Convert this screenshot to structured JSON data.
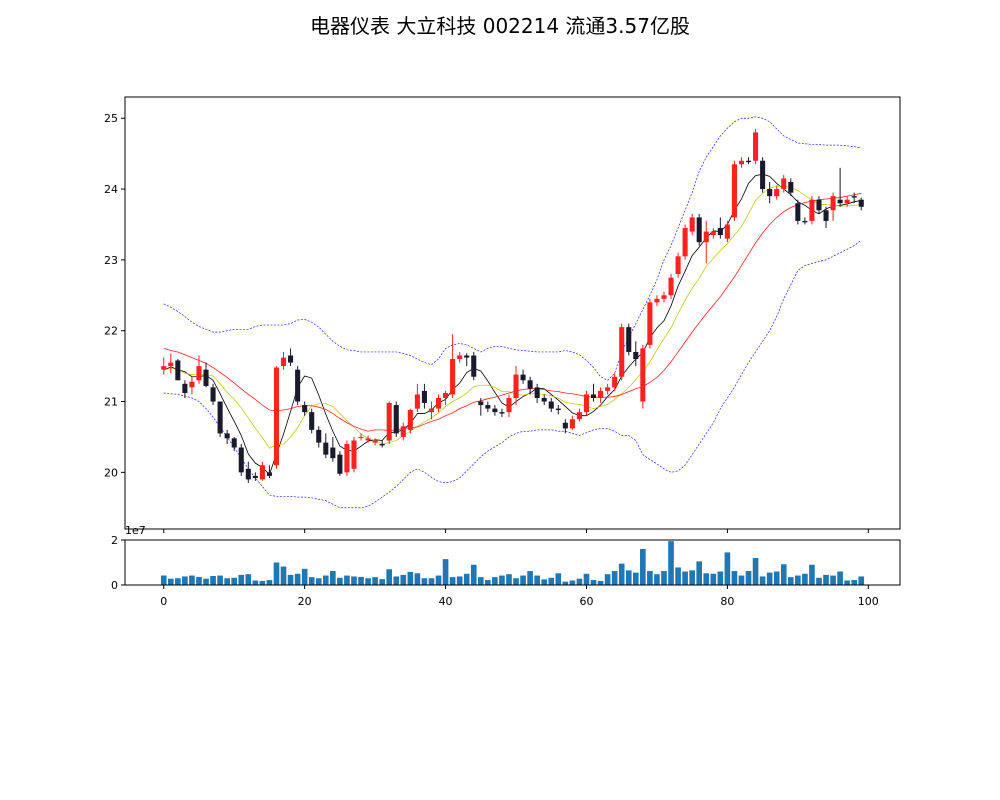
{
  "title": "电器仪表 大立科技 002214 流通3.57亿股",
  "chart_data": {
    "type": "candlestick",
    "price_panel": {
      "ylim": [
        19.2,
        25.3
      ],
      "yticks": [
        20,
        21,
        22,
        23,
        24,
        25
      ],
      "grid": false,
      "up_color": "#ff2020",
      "down_color": "#1a1a2e"
    },
    "volume_panel": {
      "ylim": [
        0,
        2.0
      ],
      "yticks": [
        0,
        2
      ],
      "scale_label": "1e7",
      "bar_color": "#1f77b4"
    },
    "x": {
      "xlim": [
        -5.5,
        104.5
      ],
      "xticks": [
        0,
        20,
        40,
        60,
        80,
        100
      ]
    },
    "ohlc": [
      [
        21.45,
        21.62,
        21.38,
        21.5
      ],
      [
        21.5,
        21.68,
        21.4,
        21.55
      ],
      [
        21.58,
        21.6,
        21.3,
        21.3
      ],
      [
        21.25,
        21.3,
        21.05,
        21.12
      ],
      [
        21.2,
        21.35,
        21.1,
        21.28
      ],
      [
        21.3,
        21.65,
        21.25,
        21.5
      ],
      [
        21.45,
        21.55,
        21.2,
        21.22
      ],
      [
        21.2,
        21.25,
        20.95,
        21.0
      ],
      [
        21.0,
        21.0,
        20.5,
        20.55
      ],
      [
        20.55,
        20.6,
        20.4,
        20.48
      ],
      [
        20.48,
        20.5,
        20.3,
        20.35
      ],
      [
        20.35,
        20.4,
        19.95,
        20.0
      ],
      [
        20.05,
        20.15,
        19.85,
        19.9
      ],
      [
        19.95,
        20.0,
        19.88,
        19.92
      ],
      [
        19.9,
        20.15,
        19.88,
        20.1
      ],
      [
        20.0,
        20.1,
        19.92,
        19.95
      ],
      [
        20.1,
        21.5,
        20.05,
        21.48
      ],
      [
        21.5,
        21.7,
        21.45,
        21.62
      ],
      [
        21.65,
        21.75,
        21.5,
        21.55
      ],
      [
        21.45,
        21.5,
        20.95,
        21.0
      ],
      [
        20.95,
        21.0,
        20.8,
        20.85
      ],
      [
        20.85,
        20.9,
        20.55,
        20.6
      ],
      [
        20.6,
        20.65,
        20.35,
        20.42
      ],
      [
        20.42,
        20.55,
        20.2,
        20.25
      ],
      [
        20.35,
        20.5,
        20.15,
        20.2
      ],
      [
        20.25,
        20.3,
        19.95,
        19.98
      ],
      [
        20.0,
        20.45,
        19.95,
        20.4
      ],
      [
        20.05,
        20.5,
        20.0,
        20.45
      ],
      [
        20.5,
        20.55,
        20.45,
        20.5
      ],
      [
        20.45,
        20.52,
        20.42,
        20.48
      ],
      [
        20.42,
        20.48,
        20.38,
        20.45
      ],
      [
        20.4,
        20.45,
        20.35,
        20.38
      ],
      [
        20.45,
        21.0,
        20.4,
        20.98
      ],
      [
        20.95,
        21.0,
        20.5,
        20.55
      ],
      [
        20.5,
        20.7,
        20.45,
        20.65
      ],
      [
        20.6,
        20.9,
        20.55,
        20.88
      ],
      [
        20.9,
        21.25,
        20.85,
        21.1
      ],
      [
        21.15,
        21.25,
        20.9,
        20.98
      ],
      [
        20.85,
        21.0,
        20.75,
        20.9
      ],
      [
        20.9,
        21.1,
        20.85,
        21.05
      ],
      [
        21.05,
        21.15,
        20.95,
        21.12
      ],
      [
        21.1,
        21.95,
        21.05,
        21.6
      ],
      [
        21.6,
        21.7,
        21.55,
        21.65
      ],
      [
        21.65,
        21.68,
        21.5,
        21.62
      ],
      [
        21.65,
        21.7,
        21.3,
        21.35
      ],
      [
        21.0,
        21.05,
        20.8,
        20.95
      ],
      [
        20.95,
        21.0,
        20.85,
        20.9
      ],
      [
        20.9,
        20.95,
        20.8,
        20.85
      ],
      [
        20.85,
        20.9,
        20.78,
        20.83
      ],
      [
        20.85,
        21.1,
        20.78,
        21.05
      ],
      [
        21.05,
        21.5,
        20.95,
        21.38
      ],
      [
        21.38,
        21.45,
        21.25,
        21.3
      ],
      [
        21.3,
        21.35,
        21.1,
        21.18
      ],
      [
        21.2,
        21.25,
        20.98,
        21.05
      ],
      [
        21.05,
        21.1,
        20.95,
        21.0
      ],
      [
        21.0,
        21.05,
        20.85,
        20.9
      ],
      [
        20.9,
        20.95,
        20.82,
        20.88
      ],
      [
        20.7,
        20.75,
        20.55,
        20.62
      ],
      [
        20.62,
        20.8,
        20.6,
        20.75
      ],
      [
        20.75,
        20.9,
        20.72,
        20.85
      ],
      [
        20.85,
        21.15,
        20.8,
        21.1
      ],
      [
        21.1,
        21.25,
        21.0,
        21.05
      ],
      [
        21.05,
        21.2,
        20.98,
        21.15
      ],
      [
        21.15,
        21.25,
        21.1,
        21.2
      ],
      [
        21.2,
        21.4,
        21.15,
        21.35
      ],
      [
        21.35,
        22.1,
        21.3,
        22.05
      ],
      [
        22.05,
        22.1,
        21.65,
        21.7
      ],
      [
        21.7,
        21.85,
        21.5,
        21.6
      ],
      [
        21.0,
        21.8,
        20.9,
        21.75
      ],
      [
        21.8,
        22.45,
        21.75,
        22.4
      ],
      [
        22.4,
        22.5,
        22.35,
        22.45
      ],
      [
        22.45,
        22.55,
        22.4,
        22.5
      ],
      [
        22.5,
        22.8,
        22.45,
        22.75
      ],
      [
        22.8,
        23.1,
        22.75,
        23.05
      ],
      [
        23.05,
        23.5,
        23.0,
        23.45
      ],
      [
        23.4,
        23.65,
        23.35,
        23.6
      ],
      [
        23.6,
        23.65,
        23.2,
        23.25
      ],
      [
        23.25,
        23.55,
        22.95,
        23.4
      ],
      [
        23.35,
        23.45,
        23.3,
        23.4
      ],
      [
        23.45,
        23.6,
        23.3,
        23.35
      ],
      [
        23.3,
        23.55,
        23.25,
        23.5
      ],
      [
        23.6,
        24.4,
        23.55,
        24.35
      ],
      [
        24.35,
        24.45,
        24.3,
        24.4
      ],
      [
        24.4,
        24.45,
        24.35,
        24.38
      ],
      [
        24.4,
        24.85,
        24.35,
        24.8
      ],
      [
        24.4,
        24.45,
        23.95,
        24.0
      ],
      [
        24.0,
        24.1,
        23.8,
        23.9
      ],
      [
        23.9,
        24.05,
        23.85,
        24.0
      ],
      [
        24.0,
        24.2,
        23.95,
        24.15
      ],
      [
        24.1,
        24.15,
        23.9,
        23.95
      ],
      [
        23.8,
        23.85,
        23.5,
        23.55
      ],
      [
        23.55,
        23.6,
        23.5,
        23.53
      ],
      [
        23.55,
        23.9,
        23.5,
        23.85
      ],
      [
        23.85,
        23.9,
        23.65,
        23.7
      ],
      [
        23.7,
        23.75,
        23.45,
        23.55
      ],
      [
        23.7,
        23.95,
        23.55,
        23.9
      ],
      [
        23.85,
        24.3,
        23.75,
        23.8
      ],
      [
        23.8,
        23.9,
        23.75,
        23.85
      ],
      [
        23.9,
        23.95,
        23.8,
        23.88
      ],
      [
        23.85,
        23.88,
        23.7,
        23.75
      ]
    ],
    "volume": [
      0.42,
      0.28,
      0.3,
      0.38,
      0.42,
      0.36,
      0.28,
      0.4,
      0.42,
      0.3,
      0.32,
      0.45,
      0.48,
      0.2,
      0.18,
      0.22,
      1.0,
      0.82,
      0.45,
      0.5,
      0.72,
      0.35,
      0.3,
      0.42,
      0.62,
      0.32,
      0.42,
      0.38,
      0.36,
      0.3,
      0.35,
      0.26,
      0.7,
      0.38,
      0.45,
      0.58,
      0.52,
      0.3,
      0.3,
      0.42,
      1.15,
      0.35,
      0.38,
      0.5,
      0.9,
      0.35,
      0.22,
      0.35,
      0.42,
      0.48,
      0.3,
      0.42,
      0.62,
      0.42,
      0.25,
      0.32,
      0.52,
      0.15,
      0.2,
      0.28,
      0.5,
      0.22,
      0.18,
      0.48,
      0.62,
      0.95,
      0.65,
      0.55,
      1.6,
      0.62,
      0.48,
      0.62,
      1.95,
      0.78,
      0.6,
      0.65,
      1.05,
      0.52,
      0.5,
      0.6,
      1.45,
      0.62,
      0.42,
      0.62,
      1.2,
      0.38,
      0.55,
      0.6,
      0.92,
      0.35,
      0.42,
      0.5,
      0.9,
      0.32,
      0.45,
      0.42,
      0.6,
      0.2,
      0.22,
      0.38
    ],
    "overlays": [
      {
        "name": "",
        "color": "#000000",
        "values": [
          21.44,
          21.49,
          21.45,
          21.42,
          21.35,
          21.35,
          21.37,
          21.3,
          21.11,
          20.91,
          20.72,
          20.52,
          20.26,
          20.13,
          20.07,
          19.97,
          20.26,
          20.54,
          20.86,
          21.2,
          21.36,
          21.33,
          21.09,
          20.82,
          20.58,
          20.37,
          20.31,
          20.3,
          20.37,
          20.44,
          20.46,
          20.45,
          20.56,
          20.57,
          20.6,
          20.69,
          20.83,
          20.83,
          20.88,
          20.98,
          21.03,
          21.17,
          21.26,
          21.41,
          21.47,
          21.43,
          21.29,
          21.13,
          20.98,
          20.92,
          21.0,
          21.07,
          21.12,
          21.19,
          21.18,
          21.1,
          21.02,
          20.93,
          20.84,
          20.8,
          20.8,
          20.86,
          20.95,
          21.07,
          21.17,
          21.36,
          21.49,
          21.6,
          21.69,
          21.9,
          22.04,
          22.14,
          22.35,
          22.63,
          22.84,
          23.06,
          23.18,
          23.31,
          23.41,
          23.4,
          23.5,
          23.7,
          23.86,
          24.08,
          24.19,
          24.21,
          24.18,
          24.08,
          24.0,
          23.92,
          23.82,
          23.77,
          23.7,
          23.65,
          23.72,
          23.76,
          23.77,
          23.79,
          23.82,
          23.84
        ]
      },
      {
        "name": "",
        "color": "#c8c820",
        "values": [
          21.44,
          21.47,
          21.45,
          21.4,
          21.38,
          21.38,
          21.38,
          21.36,
          21.25,
          21.13,
          21.03,
          20.91,
          20.77,
          20.62,
          20.49,
          20.34,
          20.39,
          20.4,
          20.5,
          20.63,
          20.8,
          20.94,
          20.97,
          20.97,
          20.93,
          20.83,
          20.73,
          20.64,
          20.54,
          20.48,
          20.45,
          20.4,
          20.42,
          20.45,
          20.52,
          20.58,
          20.65,
          20.71,
          20.77,
          20.84,
          20.93,
          21.0,
          21.05,
          21.12,
          21.21,
          21.23,
          21.23,
          21.2,
          21.14,
          21.14,
          21.1,
          21.09,
          21.11,
          21.11,
          21.1,
          21.08,
          21.05,
          20.99,
          20.97,
          20.96,
          20.93,
          20.9,
          20.93,
          20.96,
          21.03,
          21.11,
          21.2,
          21.31,
          21.43,
          21.56,
          21.73,
          21.89,
          22.04,
          22.24,
          22.43,
          22.6,
          22.74,
          22.91,
          23.02,
          23.13,
          23.23,
          23.35,
          23.47,
          23.65,
          23.84,
          23.94,
          24.01,
          24.04,
          24.04,
          24.02,
          23.98,
          23.91,
          23.85,
          23.79,
          23.78,
          23.77,
          23.76,
          23.76,
          23.77,
          23.78
        ]
      },
      {
        "name": "",
        "color": "#ff2020",
        "values": [
          21.75,
          21.72,
          21.7,
          21.66,
          21.62,
          21.58,
          21.54,
          21.48,
          21.41,
          21.34,
          21.26,
          21.18,
          21.1,
          21.03,
          20.95,
          20.88,
          20.87,
          20.88,
          20.9,
          20.93,
          20.94,
          20.94,
          20.92,
          20.89,
          20.83,
          20.76,
          20.7,
          20.65,
          20.61,
          20.58,
          20.6,
          20.6,
          20.59,
          20.6,
          20.62,
          20.63,
          20.64,
          20.68,
          20.72,
          20.75,
          20.8,
          20.84,
          20.9,
          20.94,
          20.99,
          21.01,
          21.04,
          21.06,
          21.09,
          21.12,
          21.15,
          21.17,
          21.18,
          21.18,
          21.17,
          21.15,
          21.14,
          21.12,
          21.11,
          21.09,
          21.07,
          21.06,
          21.06,
          21.06,
          21.07,
          21.1,
          21.14,
          21.18,
          21.21,
          21.27,
          21.34,
          21.44,
          21.56,
          21.7,
          21.84,
          21.98,
          22.11,
          22.24,
          22.36,
          22.48,
          22.62,
          22.76,
          22.92,
          23.08,
          23.24,
          23.38,
          23.5,
          23.6,
          23.68,
          23.74,
          23.78,
          23.81,
          23.83,
          23.85,
          23.86,
          23.87,
          23.88,
          23.9,
          23.92,
          23.94
        ]
      }
    ],
    "bands": {
      "color": "#2020ff",
      "upper": [
        22.38,
        22.33,
        22.27,
        22.2,
        22.12,
        22.06,
        22.02,
        21.98,
        21.98,
        22.0,
        22.02,
        22.02,
        22.02,
        22.06,
        22.08,
        22.08,
        22.08,
        22.08,
        22.1,
        22.15,
        22.16,
        22.12,
        22.05,
        21.95,
        21.85,
        21.78,
        21.73,
        21.72,
        21.7,
        21.7,
        21.7,
        21.7,
        21.7,
        21.7,
        21.68,
        21.65,
        21.6,
        21.55,
        21.52,
        21.6,
        21.75,
        21.8,
        21.82,
        21.8,
        21.75,
        21.7,
        21.75,
        21.78,
        21.78,
        21.75,
        21.73,
        21.72,
        21.71,
        21.7,
        21.7,
        21.7,
        21.7,
        21.72,
        21.7,
        21.66,
        21.58,
        21.48,
        21.35,
        21.3,
        21.4,
        21.7,
        21.9,
        22.1,
        22.3,
        22.5,
        22.72,
        23.0,
        23.2,
        23.45,
        23.7,
        23.95,
        24.25,
        24.45,
        24.6,
        24.75,
        24.86,
        24.95,
        25.0,
        25.0,
        25.02,
        25.0,
        24.95,
        24.85,
        24.75,
        24.7,
        24.65,
        24.64,
        24.63,
        24.63,
        24.62,
        24.62,
        24.62,
        24.61,
        24.6,
        24.58
      ],
      "lower": [
        21.12,
        21.11,
        21.1,
        21.08,
        21.05,
        21.0,
        20.9,
        20.78,
        20.64,
        20.5,
        20.35,
        20.2,
        20.05,
        19.92,
        19.8,
        19.68,
        19.66,
        19.66,
        19.66,
        19.65,
        19.65,
        19.64,
        19.62,
        19.6,
        19.55,
        19.5,
        19.5,
        19.5,
        19.5,
        19.52,
        19.58,
        19.65,
        19.72,
        19.8,
        19.9,
        20.0,
        20.05,
        20.0,
        19.93,
        19.87,
        19.85,
        19.87,
        19.92,
        20.02,
        20.12,
        20.22,
        20.3,
        20.36,
        20.42,
        20.5,
        20.55,
        20.58,
        20.58,
        20.6,
        20.6,
        20.6,
        20.58,
        20.58,
        20.55,
        20.52,
        20.56,
        20.6,
        20.62,
        20.62,
        20.58,
        20.52,
        20.52,
        20.45,
        20.25,
        20.18,
        20.12,
        20.05,
        20.0,
        20.02,
        20.1,
        20.25,
        20.4,
        20.55,
        20.7,
        20.9,
        21.05,
        21.2,
        21.38,
        21.55,
        21.7,
        21.85,
        22.0,
        22.2,
        22.45,
        22.65,
        22.85,
        22.92,
        22.95,
        22.98,
        23.0,
        23.05,
        23.1,
        23.15,
        23.2,
        23.28
      ]
    }
  }
}
